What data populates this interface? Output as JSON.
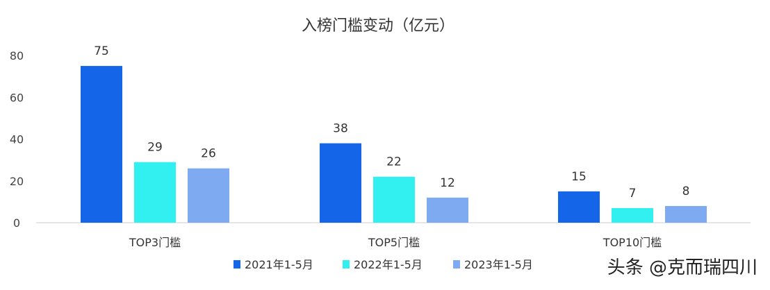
{
  "chart_data": {
    "type": "bar",
    "title": "入榜门槛变动（亿元）",
    "categories": [
      "TOP3门槛",
      "TOP5门槛",
      "TOP10门槛"
    ],
    "series": [
      {
        "name": "2021年1-5月",
        "values": [
          75,
          38,
          15
        ],
        "color": "#1565e8"
      },
      {
        "name": "2022年1-5月",
        "values": [
          29,
          22,
          7
        ],
        "color": "#33f0f0"
      },
      {
        "name": "2023年1-5月",
        "values": [
          26,
          12,
          8
        ],
        "color": "#7eaaf2"
      }
    ],
    "ylim": [
      0,
      80
    ],
    "yticks": [
      0,
      20,
      40,
      60,
      80
    ],
    "xlabel": "",
    "ylabel": "",
    "grid": false,
    "legend_position": "bottom-center"
  },
  "watermark": "头条 @克而瑞四川"
}
